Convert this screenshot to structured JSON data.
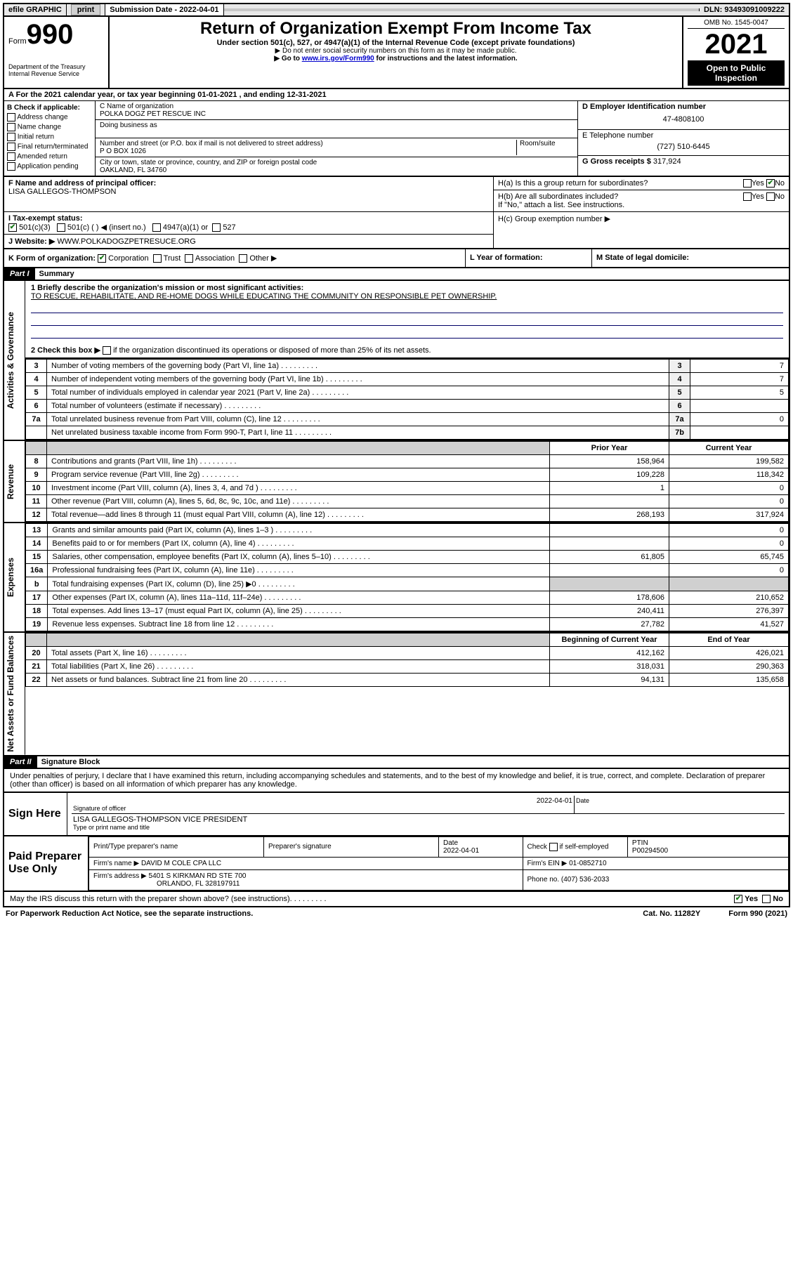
{
  "topbar": {
    "efile": "efile GRAPHIC",
    "print": "print",
    "sub_label": "Submission Date - ",
    "sub_date": "2022-04-01",
    "dln_label": "DLN: ",
    "dln": "93493091009222"
  },
  "header": {
    "form_word": "Form",
    "form_num": "990",
    "dept": "Department of the Treasury\nInternal Revenue Service",
    "title": "Return of Organization Exempt From Income Tax",
    "subtitle": "Under section 501(c), 527, or 4947(a)(1) of the Internal Revenue Code (except private foundations)",
    "note1": "▶ Do not enter social security numbers on this form as it may be made public.",
    "note2_a": "▶ Go to ",
    "note2_link": "www.irs.gov/Form990",
    "note2_b": " for instructions and the latest information.",
    "omb": "OMB No. 1545-0047",
    "year": "2021",
    "open": "Open to Public Inspection"
  },
  "taxyear": "For the 2021 calendar year, or tax year beginning 01-01-2021   , and ending 12-31-2021",
  "check": {
    "header": "B Check if applicable:",
    "addr": "Address change",
    "name": "Name change",
    "init": "Initial return",
    "final": "Final return/terminated",
    "amend": "Amended return",
    "app": "Application pending"
  },
  "org": {
    "name_lbl": "C Name of organization",
    "name": "POLKA DOGZ PET RESCUE INC",
    "dba_lbl": "Doing business as",
    "dba": "",
    "addr_lbl": "Number and street (or P.O. box if mail is not delivered to street address)",
    "room_lbl": "Room/suite",
    "addr": "P O BOX 1026",
    "city_lbl": "City or town, state or province, country, and ZIP or foreign postal code",
    "city": "OAKLAND, FL  34760",
    "officer_lbl": "F Name and address of principal officer:",
    "officer": "LISA GALLEGOS-THOMPSON"
  },
  "rcol": {
    "ein_lbl": "D Employer Identification number",
    "ein": "47-4808100",
    "tel_lbl": "E Telephone number",
    "tel": "(727) 510-6445",
    "gross_lbl": "G Gross receipts $ ",
    "gross": "317,924"
  },
  "hq": {
    "ha": "H(a)  Is this a group return for subordinates?",
    "hb": "H(b)  Are all subordinates included?",
    "hb_note": "If \"No,\" attach a list. See instructions.",
    "hc": "H(c)  Group exemption number ▶",
    "yes": "Yes",
    "no": "No"
  },
  "stat": {
    "i_lbl": "I  Tax-exempt status:",
    "s501c3": "501(c)(3)",
    "s501c": "501(c) (  ) ◀ (insert no.)",
    "s4947": "4947(a)(1) or",
    "s527": "527",
    "j_lbl": "J  Website: ▶ ",
    "website": "WWW.POLKADOGZPETRESUCE.ORG"
  },
  "korg": {
    "k": "K Form of organization:",
    "corp": "Corporation",
    "trust": "Trust",
    "assoc": "Association",
    "other": "Other ▶",
    "l": "L Year of formation:",
    "m": "M State of legal domicile:"
  },
  "parts": {
    "p1": "Part I",
    "p1t": "Summary",
    "p2": "Part II",
    "p2t": "Signature Block"
  },
  "sides": {
    "gov": "Activities & Governance",
    "rev": "Revenue",
    "exp": "Expenses",
    "net": "Net Assets or Fund Balances"
  },
  "mission": {
    "q1": "1  Briefly describe the organization's mission or most significant activities:",
    "text": "TO RESCUE, REHABILITATE, AND RE-HOME DOGS WHILE EDUCATING THE COMMUNITY ON RESPONSIBLE PET OWNERSHIP.",
    "q2": "2  Check this box ▶",
    "q2b": "if the organization discontinued its operations or disposed of more than 25% of its net assets."
  },
  "govrows": [
    {
      "n": "3",
      "d": "Number of voting members of the governing body (Part VI, line 1a)",
      "ln": "3",
      "v": "7"
    },
    {
      "n": "4",
      "d": "Number of independent voting members of the governing body (Part VI, line 1b)",
      "ln": "4",
      "v": "7"
    },
    {
      "n": "5",
      "d": "Total number of individuals employed in calendar year 2021 (Part V, line 2a)",
      "ln": "5",
      "v": "5"
    },
    {
      "n": "6",
      "d": "Total number of volunteers (estimate if necessary)",
      "ln": "6",
      "v": ""
    },
    {
      "n": "7a",
      "d": "Total unrelated business revenue from Part VIII, column (C), line 12",
      "ln": "7a",
      "v": "0"
    },
    {
      "n": "",
      "d": "Net unrelated business taxable income from Form 990-T, Part I, line 11",
      "ln": "7b",
      "v": ""
    }
  ],
  "cols": {
    "prior": "Prior Year",
    "curr": "Current Year",
    "beg": "Beginning of Current Year",
    "end": "End of Year"
  },
  "revrows": [
    {
      "n": "8",
      "d": "Contributions and grants (Part VIII, line 1h)",
      "p": "158,964",
      "c": "199,582"
    },
    {
      "n": "9",
      "d": "Program service revenue (Part VIII, line 2g)",
      "p": "109,228",
      "c": "118,342"
    },
    {
      "n": "10",
      "d": "Investment income (Part VIII, column (A), lines 3, 4, and 7d )",
      "p": "1",
      "c": "0"
    },
    {
      "n": "11",
      "d": "Other revenue (Part VIII, column (A), lines 5, 6d, 8c, 9c, 10c, and 11e)",
      "p": "",
      "c": "0"
    },
    {
      "n": "12",
      "d": "Total revenue—add lines 8 through 11 (must equal Part VIII, column (A), line 12)",
      "p": "268,193",
      "c": "317,924"
    }
  ],
  "exprows": [
    {
      "n": "13",
      "d": "Grants and similar amounts paid (Part IX, column (A), lines 1–3 )",
      "p": "",
      "c": "0"
    },
    {
      "n": "14",
      "d": "Benefits paid to or for members (Part IX, column (A), line 4)",
      "p": "",
      "c": "0"
    },
    {
      "n": "15",
      "d": "Salaries, other compensation, employee benefits (Part IX, column (A), lines 5–10)",
      "p": "61,805",
      "c": "65,745"
    },
    {
      "n": "16a",
      "d": "Professional fundraising fees (Part IX, column (A), line 11e)",
      "p": "",
      "c": "0"
    },
    {
      "n": "b",
      "d": "Total fundraising expenses (Part IX, column (D), line 25) ▶0",
      "p": "shade",
      "c": "shade"
    },
    {
      "n": "17",
      "d": "Other expenses (Part IX, column (A), lines 11a–11d, 11f–24e)",
      "p": "178,606",
      "c": "210,652"
    },
    {
      "n": "18",
      "d": "Total expenses. Add lines 13–17 (must equal Part IX, column (A), line 25)",
      "p": "240,411",
      "c": "276,397"
    },
    {
      "n": "19",
      "d": "Revenue less expenses. Subtract line 18 from line 12",
      "p": "27,782",
      "c": "41,527"
    }
  ],
  "netrows": [
    {
      "n": "20",
      "d": "Total assets (Part X, line 16)",
      "p": "412,162",
      "c": "426,021"
    },
    {
      "n": "21",
      "d": "Total liabilities (Part X, line 26)",
      "p": "318,031",
      "c": "290,363"
    },
    {
      "n": "22",
      "d": "Net assets or fund balances. Subtract line 21 from line 20",
      "p": "94,131",
      "c": "135,658"
    }
  ],
  "sig": {
    "decl": "Under penalties of perjury, I declare that I have examined this return, including accompanying schedules and statements, and to the best of my knowledge and belief, it is true, correct, and complete. Declaration of preparer (other than officer) is based on all information of which preparer has any knowledge.",
    "sign_here": "Sign Here",
    "sig_officer": "Signature of officer",
    "date": "Date",
    "date_val": "2022-04-01",
    "name_title": "LISA GALLEGOS-THOMPSON  VICE PRESIDENT",
    "type_name": "Type or print name and title",
    "paid": "Paid Preparer Use Only",
    "prep_name_h": "Print/Type preparer's name",
    "prep_sig_h": "Preparer's signature",
    "prep_date_h": "Date",
    "prep_date": "2022-04-01",
    "check_self": "Check",
    "self_emp": "if self-employed",
    "ptin_h": "PTIN",
    "ptin": "P00294500",
    "firm_name_h": "Firm's name    ▶",
    "firm_name": "DAVID M COLE CPA LLC",
    "firm_ein_h": "Firm's EIN ▶",
    "firm_ein": "01-0852710",
    "firm_addr_h": "Firm's address ▶",
    "firm_addr1": "5401 S KIRKMAN RD STE 700",
    "firm_addr2": "ORLANDO, FL  328197911",
    "phone_h": "Phone no.",
    "phone": "(407) 536-2033"
  },
  "footer": {
    "discuss": "May the IRS discuss this return with the preparer shown above? (see instructions)",
    "paperwork": "For Paperwork Reduction Act Notice, see the separate instructions.",
    "catno": "Cat. No. 11282Y",
    "formno": "Form 990 (2021)"
  }
}
